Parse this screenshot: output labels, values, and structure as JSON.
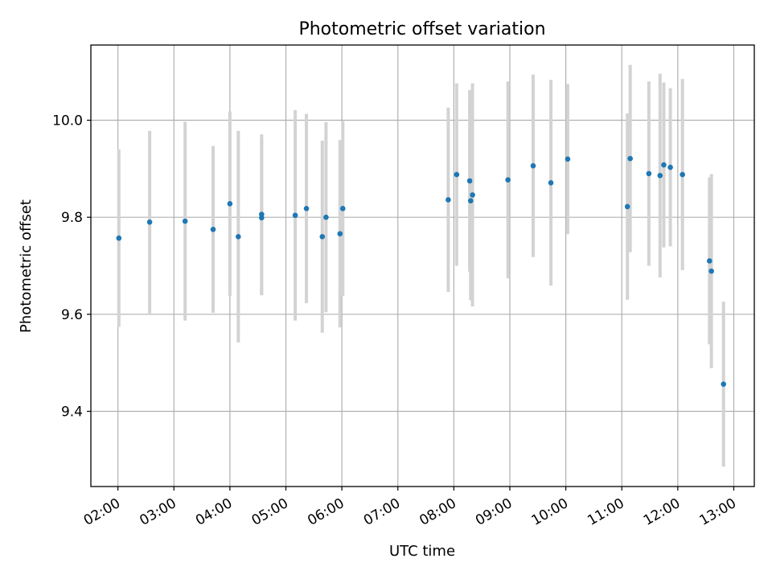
{
  "chart_data": {
    "type": "scatter",
    "title": "Photometric offset variation",
    "xlabel": "UTC time",
    "ylabel": "Photometric offset",
    "xlim": [
      "01:31",
      "13:22"
    ],
    "ylim": [
      9.245,
      10.155
    ],
    "x_ticks": [
      "02:00",
      "03:00",
      "04:00",
      "05:00",
      "06:00",
      "07:00",
      "08:00",
      "09:00",
      "10:00",
      "11:00",
      "12:00",
      "13:00"
    ],
    "y_ticks": [
      9.4,
      9.6,
      9.8,
      10.0
    ],
    "y_tick_labels": [
      "9.4",
      "9.6",
      "9.8",
      "10.0"
    ],
    "grid": true,
    "point_color": "#1f77b4",
    "errorbar_color": "#d3d3d3",
    "points": [
      {
        "x": "02:01",
        "y": 9.757,
        "err": 0.183
      },
      {
        "x": "02:34",
        "y": 9.79,
        "err": 0.188
      },
      {
        "x": "03:12",
        "y": 9.792,
        "err": 0.205
      },
      {
        "x": "03:42",
        "y": 9.775,
        "err": 0.172
      },
      {
        "x": "04:00",
        "y": 9.828,
        "err": 0.19
      },
      {
        "x": "04:09",
        "y": 9.76,
        "err": 0.218
      },
      {
        "x": "04:34",
        "y": 9.806,
        "err": 0.165
      },
      {
        "x": "04:34",
        "y": 9.799,
        "err": 0.16
      },
      {
        "x": "05:10",
        "y": 9.804,
        "err": 0.217
      },
      {
        "x": "05:22",
        "y": 9.818,
        "err": 0.195
      },
      {
        "x": "05:39",
        "y": 9.76,
        "err": 0.198
      },
      {
        "x": "05:43",
        "y": 9.8,
        "err": 0.196
      },
      {
        "x": "05:58",
        "y": 9.766,
        "err": 0.193
      },
      {
        "x": "06:01",
        "y": 9.818,
        "err": 0.18
      },
      {
        "x": "07:54",
        "y": 9.836,
        "err": 0.19
      },
      {
        "x": "08:03",
        "y": 9.888,
        "err": 0.188
      },
      {
        "x": "08:17",
        "y": 9.875,
        "err": 0.187
      },
      {
        "x": "08:18",
        "y": 9.834,
        "err": 0.205
      },
      {
        "x": "08:20",
        "y": 9.846,
        "err": 0.23
      },
      {
        "x": "08:58",
        "y": 9.877,
        "err": 0.203
      },
      {
        "x": "09:25",
        "y": 9.906,
        "err": 0.188
      },
      {
        "x": "09:44",
        "y": 9.871,
        "err": 0.212
      },
      {
        "x": "10:02",
        "y": 9.92,
        "err": 0.155
      },
      {
        "x": "11:06",
        "y": 9.822,
        "err": 0.192
      },
      {
        "x": "11:09",
        "y": 9.921,
        "err": 0.193
      },
      {
        "x": "11:29",
        "y": 9.89,
        "err": 0.19
      },
      {
        "x": "11:41",
        "y": 9.886,
        "err": 0.21
      },
      {
        "x": "11:45",
        "y": 9.908,
        "err": 0.17
      },
      {
        "x": "11:52",
        "y": 9.903,
        "err": 0.163
      },
      {
        "x": "12:05",
        "y": 9.888,
        "err": 0.197
      },
      {
        "x": "12:34",
        "y": 9.71,
        "err": 0.172
      },
      {
        "x": "12:36",
        "y": 9.689,
        "err": 0.2
      },
      {
        "x": "12:49",
        "y": 9.456,
        "err": 0.17
      }
    ]
  }
}
